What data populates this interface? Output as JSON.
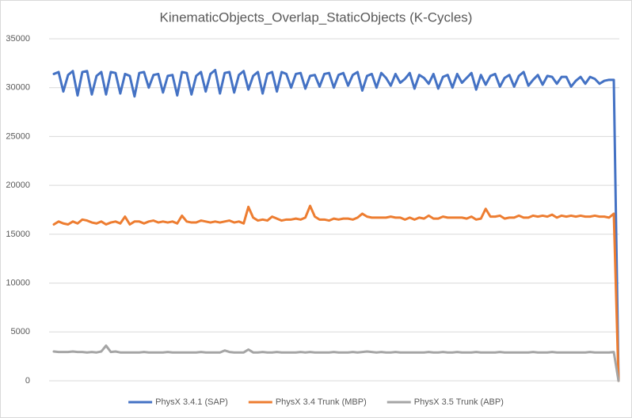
{
  "chart_data": {
    "type": "line",
    "title": "KinematicObjects_Overlap_StaticObjects (K-Cycles)",
    "ylim": [
      0,
      35000
    ],
    "yticks": [
      0,
      5000,
      10000,
      15000,
      20000,
      25000,
      30000,
      35000
    ],
    "grid": true,
    "legend": "bottom",
    "categories": [
      null,
      null,
      null,
      null,
      null,
      null,
      null,
      null,
      null,
      null,
      null,
      null,
      null,
      null,
      null,
      null,
      null,
      null,
      null,
      null,
      null,
      null,
      null,
      null,
      null,
      null,
      null,
      null,
      null,
      null,
      null,
      null,
      null,
      null,
      null,
      null,
      null,
      null,
      null,
      null,
      null,
      null,
      null,
      null,
      null,
      null,
      null,
      null,
      null,
      null,
      null,
      null,
      null,
      null,
      null,
      null,
      null,
      null,
      null,
      null,
      null,
      null,
      null,
      null,
      null,
      null,
      null,
      null,
      null,
      null,
      null,
      null,
      null,
      null,
      null,
      null,
      null,
      null,
      null,
      null,
      null,
      null,
      null,
      null,
      null,
      null,
      null,
      null,
      null,
      null,
      null,
      null,
      null,
      null,
      null,
      null,
      null,
      null,
      null,
      null,
      null,
      null,
      null,
      null,
      null,
      null,
      null,
      null,
      null,
      null,
      null,
      null,
      null,
      null,
      null,
      null,
      null,
      null,
      null,
      null
    ],
    "series": [
      {
        "name": "PhysX 3.4.1 (SAP)",
        "color": "#4472c4",
        "values": [
          31400,
          31600,
          29600,
          31300,
          31700,
          29200,
          31600,
          31700,
          29300,
          31200,
          31600,
          29300,
          31600,
          31500,
          29400,
          31400,
          31200,
          29100,
          31500,
          31600,
          30000,
          31300,
          31400,
          29500,
          31200,
          31300,
          29200,
          31600,
          31500,
          29300,
          31200,
          31600,
          29600,
          31400,
          31800,
          29400,
          31500,
          31600,
          29500,
          31300,
          31700,
          29800,
          31200,
          31600,
          29400,
          31400,
          31600,
          29600,
          31600,
          31400,
          30000,
          31400,
          31500,
          29900,
          31200,
          31300,
          30100,
          31400,
          31500,
          30000,
          31300,
          31500,
          30200,
          31300,
          31600,
          29700,
          31200,
          31400,
          30000,
          31500,
          31000,
          30200,
          31400,
          30500,
          30900,
          31500,
          29900,
          31300,
          31000,
          30400,
          31400,
          29900,
          31100,
          31300,
          30000,
          31400,
          30500,
          31000,
          31500,
          29800,
          31300,
          30300,
          31200,
          31400,
          30100,
          31000,
          31300,
          30100,
          31200,
          31600,
          30200,
          30800,
          31300,
          30300,
          31200,
          31100,
          30400,
          31100,
          31100,
          30100,
          30700,
          31100,
          30400,
          31100,
          30900,
          30400,
          30700,
          30800,
          30800,
          0
        ]
      },
      {
        "name": "PhysX 3.4 Trunk (MBP)",
        "color": "#ed7d31",
        "values": [
          16000,
          16300,
          16100,
          16000,
          16300,
          16100,
          16500,
          16400,
          16200,
          16100,
          16300,
          16000,
          16200,
          16300,
          16100,
          16800,
          16000,
          16300,
          16300,
          16100,
          16300,
          16400,
          16200,
          16300,
          16200,
          16300,
          16100,
          16900,
          16300,
          16200,
          16200,
          16400,
          16300,
          16200,
          16300,
          16200,
          16300,
          16400,
          16200,
          16300,
          16100,
          17800,
          16700,
          16400,
          16500,
          16400,
          16800,
          16600,
          16400,
          16500,
          16500,
          16600,
          16500,
          16700,
          17900,
          16800,
          16500,
          16500,
          16400,
          16600,
          16500,
          16600,
          16600,
          16500,
          16700,
          17100,
          16800,
          16700,
          16700,
          16700,
          16700,
          16800,
          16700,
          16700,
          16500,
          16700,
          16500,
          16700,
          16600,
          16900,
          16600,
          16600,
          16800,
          16700,
          16700,
          16700,
          16700,
          16600,
          16800,
          16500,
          16600,
          17600,
          16800,
          16800,
          16900,
          16600,
          16700,
          16700,
          16900,
          16700,
          16700,
          16900,
          16800,
          16900,
          16800,
          17000,
          16700,
          16900,
          16800,
          16900,
          16800,
          16900,
          16800,
          16800,
          16900,
          16800,
          16800,
          16700,
          17100,
          0
        ]
      },
      {
        "name": "PhysX 3.5 Trunk (ABP)",
        "color": "#a5a5a5",
        "values": [
          3000,
          2950,
          2950,
          2950,
          3000,
          2950,
          2950,
          2900,
          2950,
          2900,
          3000,
          3600,
          2950,
          3000,
          2900,
          2900,
          2900,
          2900,
          2900,
          2950,
          2900,
          2900,
          2900,
          2900,
          2950,
          2900,
          2900,
          2900,
          2900,
          2900,
          2900,
          2950,
          2900,
          2900,
          2900,
          2900,
          3100,
          2950,
          2900,
          2900,
          2900,
          3200,
          2900,
          2900,
          2950,
          2900,
          2900,
          2950,
          2900,
          2900,
          2900,
          2900,
          2950,
          2900,
          2950,
          2900,
          2900,
          2900,
          2900,
          2950,
          2900,
          2900,
          2900,
          2950,
          2900,
          2950,
          3000,
          2950,
          2900,
          2950,
          2900,
          2900,
          2950,
          2900,
          2900,
          2900,
          2900,
          2900,
          2900,
          2950,
          2900,
          2900,
          2950,
          2900,
          2900,
          2950,
          2900,
          2900,
          2900,
          2950,
          2900,
          2900,
          2900,
          2900,
          2950,
          2900,
          2900,
          2900,
          2900,
          2900,
          2900,
          2950,
          2900,
          2900,
          2900,
          2950,
          2900,
          2900,
          2900,
          2900,
          2900,
          2900,
          2900,
          2950,
          2900,
          2900,
          2900,
          2900,
          2950,
          0
        ]
      }
    ]
  }
}
